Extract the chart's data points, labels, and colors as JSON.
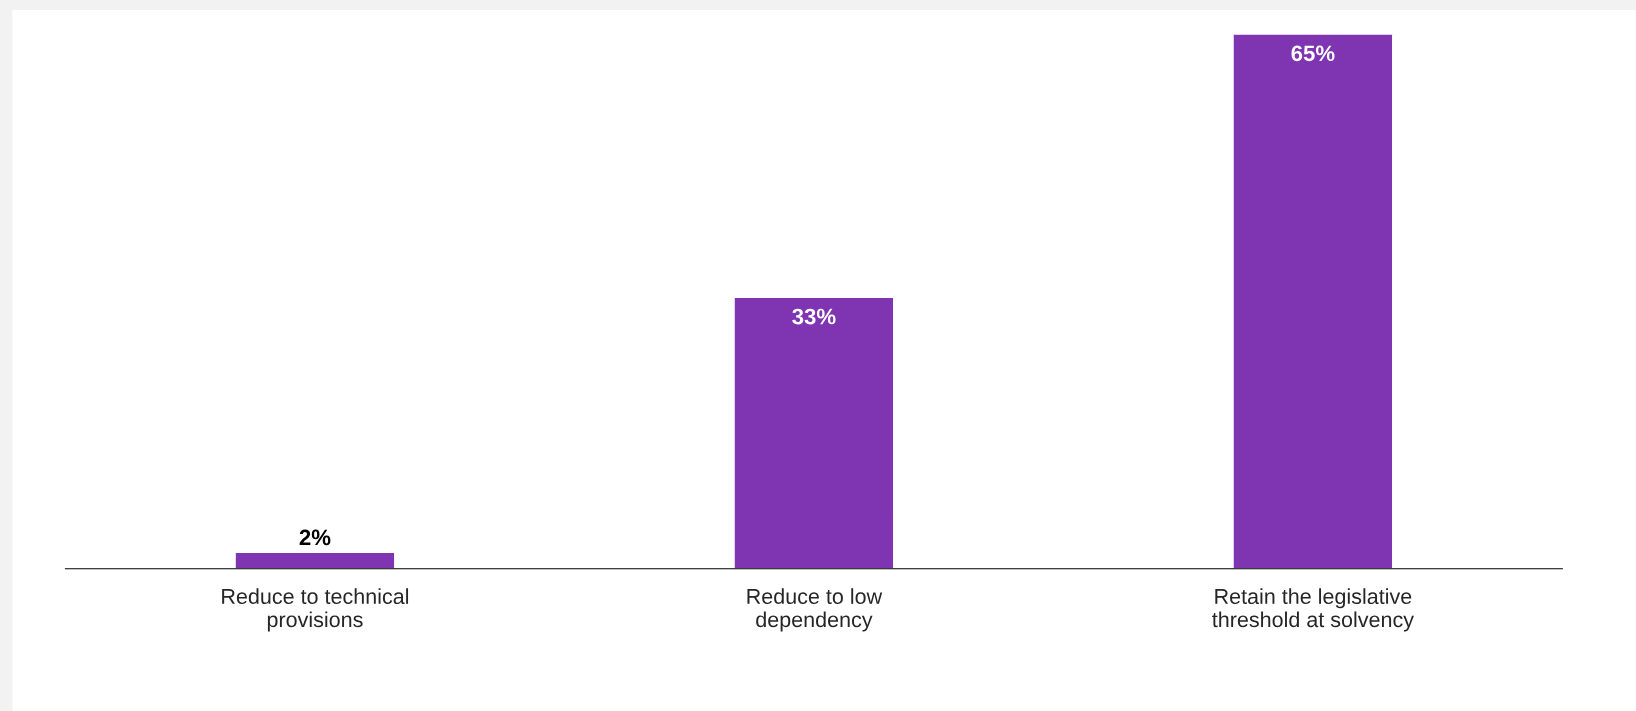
{
  "chart_data": {
    "type": "bar",
    "categories": [
      "Reduce to technical\nprovisions",
      "Reduce to low\ndependency",
      "Retain the legislative\nthreshold at solvency"
    ],
    "values": [
      2,
      33,
      65
    ],
    "value_labels": [
      "2%",
      "33%",
      "65%"
    ],
    "color": "#7f35b2",
    "grid": false,
    "legend": false
  }
}
